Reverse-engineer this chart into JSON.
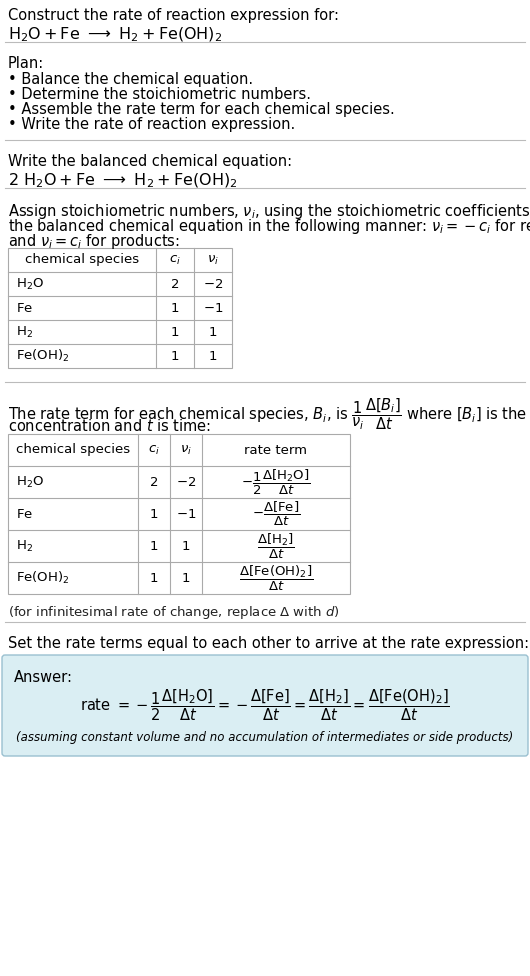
{
  "bg_color": "#ffffff",
  "text_color": "#000000",
  "line_color": "#bbbbbb",
  "answer_box_color": "#daeef3",
  "answer_box_edge": "#9ac0d0",
  "title_text": "Construct the rate of reaction expression for:",
  "plan_title": "Plan:",
  "plan_items": [
    "• Balance the chemical equation.",
    "• Determine the stoichiometric numbers.",
    "• Assemble the rate term for each chemical species.",
    "• Write the rate of reaction expression."
  ],
  "balanced_title": "Write the balanced chemical equation:",
  "stoich_line1": "Assign stoichiometric numbers, $\\nu_i$, using the stoichiometric coefficients, $c_i$, from",
  "stoich_line2": "the balanced chemical equation in the following manner: $\\nu_i = -c_i$ for reactants",
  "stoich_line3": "and $\\nu_i = c_i$ for products:",
  "rate_line1": "The rate term for each chemical species, $B_i$, is $\\dfrac{1}{\\nu_i}\\dfrac{\\Delta[B_i]}{\\Delta t}$ where $[B_i]$ is the amount",
  "rate_line2": "concentration and $t$ is time:",
  "set_equal_text": "Set the rate terms equal to each other to arrive at the rate expression:",
  "answer_label": "Answer:",
  "answer_note": "(assuming constant volume and no accumulation of intermediates or side products)",
  "infinitesimal_note": "(for infinitesimal rate of change, replace Δ with $d$)"
}
